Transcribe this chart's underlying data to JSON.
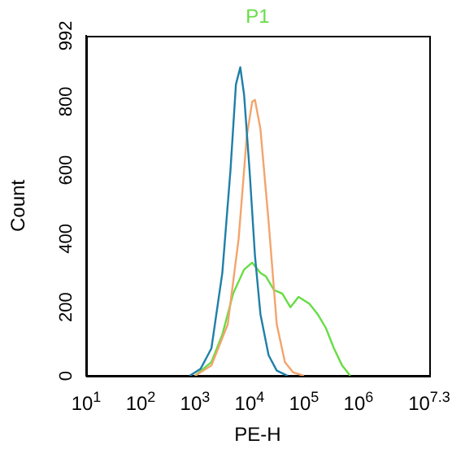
{
  "chart_data": {
    "type": "line",
    "title": "P1",
    "xlabel": "PE-H",
    "ylabel": "Count",
    "log": "x",
    "xlim": [
      10,
      19952623
    ],
    "xticks": [
      {
        "value": 10,
        "label": "10$^{1}$"
      },
      {
        "value": 100,
        "label": "10$^{2}$"
      },
      {
        "value": 1000,
        "label": "10$^{3}$"
      },
      {
        "value": 10000,
        "label": "10$^{4}$"
      },
      {
        "value": 100000,
        "label": "10$^{5}$"
      },
      {
        "value": 1000000,
        "label": "10$^{6}$"
      },
      {
        "value": 19952623,
        "label": "10$^{7.3}$"
      }
    ],
    "ylim": [
      0,
      992
    ],
    "yticks": [
      0,
      200,
      400,
      600,
      800,
      992
    ],
    "grid": false,
    "legend": false,
    "marker": "none",
    "series": [
      {
        "color": "#1f7fa8",
        "x": [
          794,
          1259,
          1995,
          3162,
          4467,
          5623,
          6761,
          7943,
          10000,
          12589,
          15849,
          22387,
          31623,
          50119
        ],
        "values": [
          0,
          20,
          80,
          300,
          600,
          850,
          900,
          820,
          600,
          350,
          180,
          60,
          15,
          0
        ]
      },
      {
        "color": "#f4a46c",
        "x": [
          1000,
          1995,
          3981,
          6310,
          8913,
          11220,
          12589,
          15849,
          22387,
          31623,
          44668,
          63096,
          100000
        ],
        "values": [
          0,
          30,
          150,
          400,
          700,
          800,
          805,
          720,
          450,
          150,
          40,
          10,
          0
        ]
      },
      {
        "color": "#66dd44",
        "x": [
          1000,
          1995,
          3162,
          5012,
          7943,
          11220,
          15849,
          19953,
          28184,
          39811,
          56234,
          79433,
          100000,
          125893,
          177828,
          251189,
          354813,
          501187,
          707946
        ],
        "values": [
          0,
          40,
          120,
          240,
          310,
          330,
          300,
          290,
          250,
          240,
          200,
          230,
          220,
          210,
          180,
          140,
          80,
          30,
          0
        ]
      }
    ]
  }
}
